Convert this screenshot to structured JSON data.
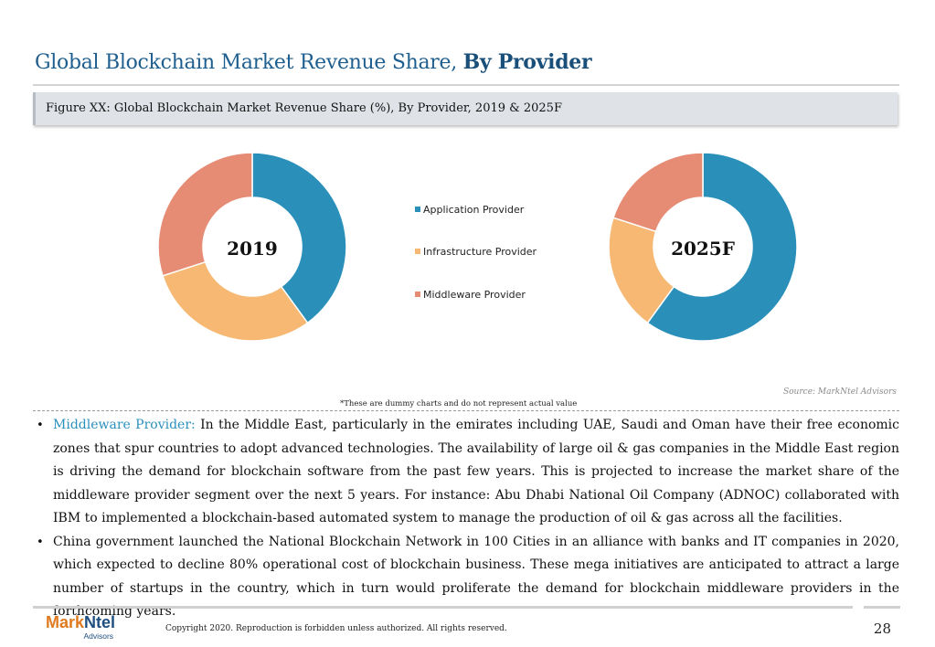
{
  "title": {
    "regular": "Global Blockchain Market Revenue Share,",
    "bold": "By Provider"
  },
  "figure_caption": "Figure XX: Global Blockchain Market Revenue Share (%), By Provider, 2019 & 2025F",
  "colors": {
    "application": "#2a90ba",
    "infrastructure": "#f6b873",
    "middleware": "#e68c74"
  },
  "chart_data": [
    {
      "type": "pie",
      "center_label": "2019",
      "categories": [
        "Application Provider",
        "Infrastructure Provider",
        "Middleware Provider"
      ],
      "values": [
        40,
        30,
        30
      ],
      "legend_placement": "between charts"
    },
    {
      "type": "pie",
      "center_label": "2025F",
      "categories": [
        "Application Provider",
        "Infrastructure Provider",
        "Middleware Provider"
      ],
      "values": [
        60,
        20,
        20
      ],
      "legend_placement": "between charts"
    }
  ],
  "legend": [
    "Application Provider",
    "Infrastructure Provider",
    "Middleware Provider"
  ],
  "source": "Source: MarkNtel Advisors",
  "note": "*These are dummy charts and do not represent actual value",
  "bullets": [
    {
      "highlight": "Middleware Provider:",
      "text": " In the Middle East, particularly in the emirates including UAE, Saudi and Oman have their free economic zones that spur countries to adopt advanced technologies. The availability of large oil & gas companies in the Middle East region is driving the demand for blockchain software from the past few years. This is projected to increase the market share of the middleware provider segment over the next 5 years. For instance: Abu Dhabi National Oil Company (ADNOC) collaborated with IBM to implemented a blockchain-based automated system to manage the production of oil & gas across all the facilities."
    },
    {
      "highlight": "",
      "text": "China government launched the National Blockchain Network in 100 Cities in an alliance with banks and IT companies in 2020, which expected to decline 80% operational cost of blockchain business. These mega initiatives are anticipated to attract a large number of startups in the country, which in turn would proliferate the demand for blockchain middleware providers in the forthcoming years."
    }
  ],
  "footer": {
    "logo_part1": "Mark",
    "logo_part2": "Ntel",
    "logo_sub": "Advisors",
    "copyright": "Copyright 2020. Reproduction is forbidden unless authorized. All rights reserved.",
    "page_number": "28"
  }
}
